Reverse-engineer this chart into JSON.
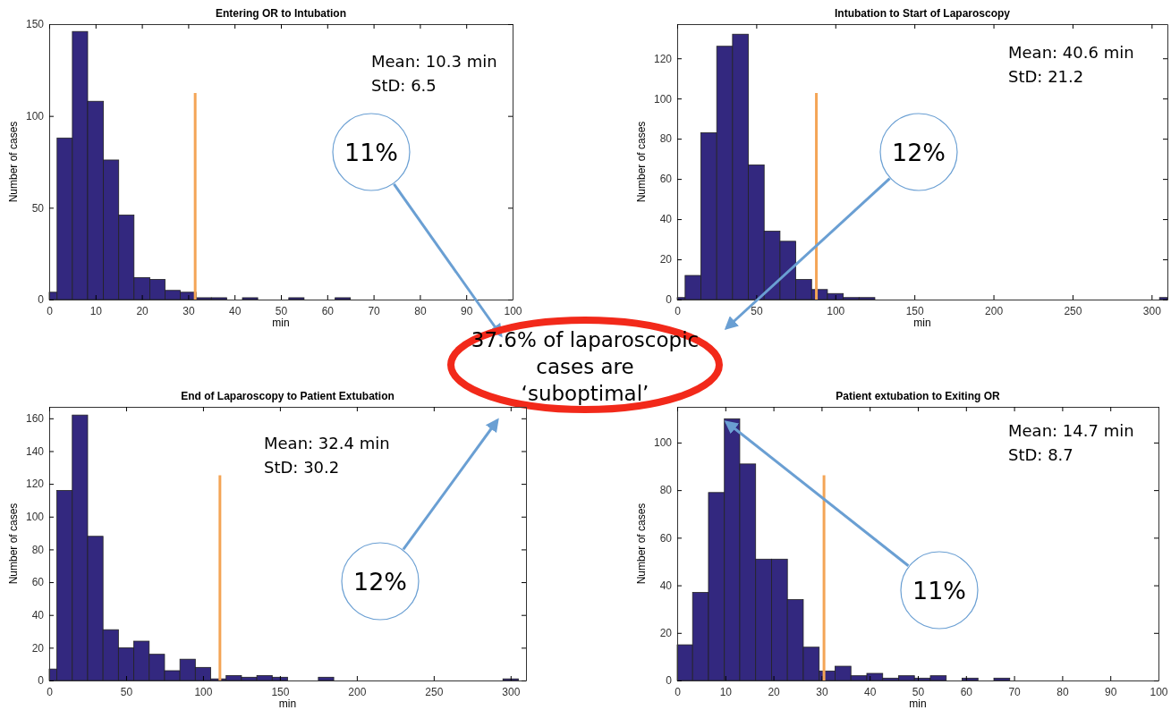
{
  "chart_data": [
    {
      "type": "histogram",
      "title": "Entering OR to Intubation",
      "xlabel": "min",
      "ylabel": "Number of cases",
      "color": "#33287f",
      "xlim": [
        0,
        100
      ],
      "ylim": [
        0,
        150
      ],
      "xticks": [
        0,
        10,
        20,
        30,
        40,
        50,
        60,
        70,
        80,
        90,
        100
      ],
      "yticks": [
        0,
        50,
        100,
        150
      ],
      "bins": [
        0,
        1.7,
        5,
        8.3,
        11.7,
        15,
        18.3,
        21.7,
        25,
        28.3,
        31.7,
        35,
        38.3,
        41.7,
        45,
        51.7,
        55,
        61.7,
        65
      ],
      "values": [
        4,
        88,
        146,
        108,
        76,
        46,
        12,
        11,
        5,
        4,
        1,
        1,
        0,
        1,
        0,
        1,
        0,
        1
      ],
      "ref_lines": [
        {
          "axis": "x",
          "value": 31.5,
          "color": "#f4a556"
        }
      ],
      "annotations": [
        "Mean: 10.3 min",
        "StD: 6.5",
        "11%",
        "37.6% of laparoscopic cases are ‘suboptimal’"
      ]
    },
    {
      "type": "histogram",
      "title": "Intubation to Start of Laparoscopy",
      "xlabel": "min",
      "ylabel": "Number of cases",
      "color": "#33287f",
      "xlim": [
        0,
        310
      ],
      "ylim": [
        0,
        137
      ],
      "xticks": [
        0,
        50,
        100,
        150,
        200,
        250,
        300
      ],
      "yticks": [
        0,
        20,
        40,
        60,
        80,
        100,
        120
      ],
      "bins": [
        0,
        5,
        15,
        25,
        35,
        45,
        55,
        65,
        75,
        85,
        95,
        105,
        115,
        125,
        305,
        310
      ],
      "values": [
        1,
        12,
        83,
        126,
        132,
        67,
        34,
        29,
        10,
        5,
        3,
        1,
        1,
        0,
        1
      ],
      "ref_lines": [
        {
          "axis": "x",
          "value": 88,
          "color": "#f4a556"
        }
      ],
      "annotations": [
        "Mean: 40.6 min",
        "StD: 21.2",
        "12%"
      ]
    },
    {
      "type": "histogram",
      "title": "End of Laparoscopy to Patient Extubation",
      "xlabel": "min",
      "ylabel": "Number of cases",
      "color": "#33287f",
      "xlim": [
        0,
        310
      ],
      "ylim": [
        0,
        167
      ],
      "xticks": [
        0,
        50,
        100,
        150,
        200,
        250,
        300
      ],
      "yticks": [
        0,
        20,
        40,
        60,
        80,
        100,
        120,
        140,
        160
      ],
      "bins": [
        0,
        5,
        15,
        25,
        35,
        45,
        55,
        65,
        75,
        85,
        95,
        105,
        115,
        125,
        135,
        145,
        155,
        175,
        185,
        295,
        305
      ],
      "values": [
        7,
        116,
        162,
        88,
        31,
        20,
        24,
        16,
        6,
        13,
        8,
        1,
        3,
        2,
        3,
        2,
        0,
        2,
        0,
        1
      ],
      "ref_lines": [
        {
          "axis": "x",
          "value": 111,
          "color": "#f4a556"
        }
      ],
      "annotations": [
        "Mean: 32.4 min",
        "StD: 30.2",
        "12%"
      ]
    },
    {
      "type": "histogram",
      "title": "Patient extubation to Exiting OR",
      "xlabel": "min",
      "ylabel": "Number of cases",
      "color": "#33287f",
      "xlim": [
        0,
        100
      ],
      "ylim": [
        0,
        115
      ],
      "xticks": [
        0,
        10,
        20,
        30,
        40,
        50,
        60,
        70,
        80,
        90,
        100
      ],
      "yticks": [
        0,
        20,
        40,
        60,
        80,
        100
      ],
      "bins": [
        0,
        3.2,
        6.5,
        9.8,
        13,
        16.3,
        19.6,
        22.9,
        26.2,
        29.5,
        32.8,
        36.1,
        39.4,
        42.7,
        46,
        49.3,
        52.6,
        55.9,
        59.2,
        62.5,
        65.8,
        69.1
      ],
      "values": [
        15,
        37,
        79,
        110,
        91,
        51,
        51,
        34,
        14,
        4,
        6,
        2,
        3,
        1,
        2,
        1,
        2,
        0,
        1,
        0,
        1
      ],
      "ref_lines": [
        {
          "axis": "x",
          "value": 30.5,
          "color": "#f4a556"
        }
      ],
      "annotations": [
        "Mean: 14.7 min",
        "StD: 8.7",
        "11%"
      ]
    }
  ]
}
